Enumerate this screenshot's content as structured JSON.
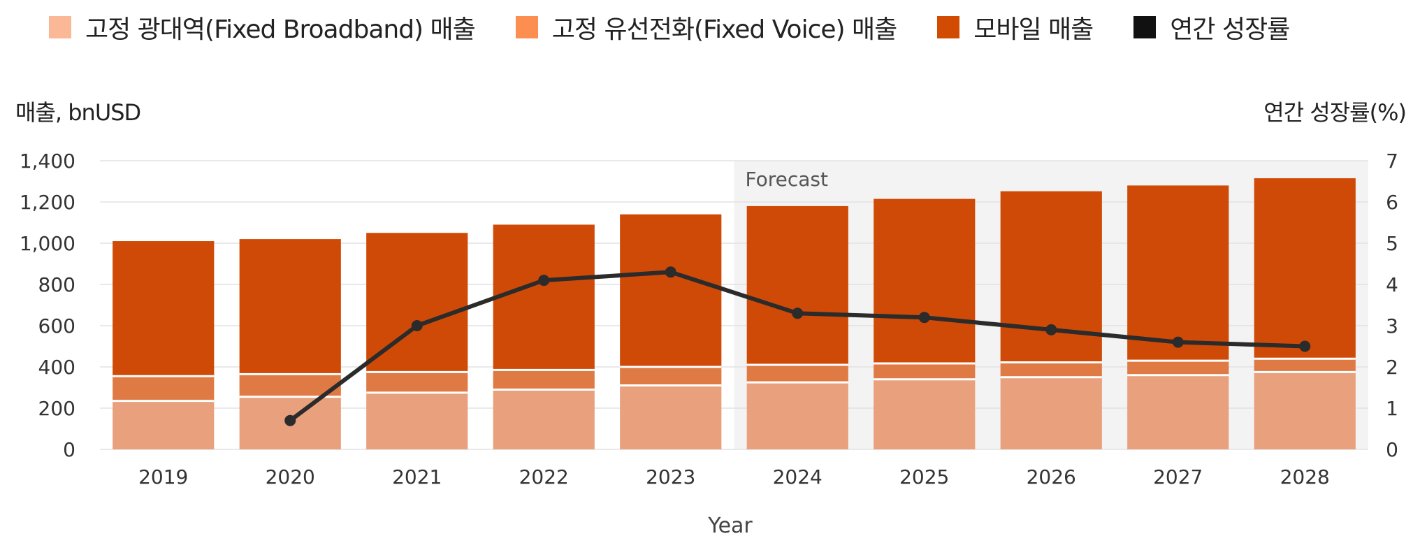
{
  "legend": {
    "items": [
      {
        "label": "고정 광대역(Fixed Broadband) 매출",
        "color": "#FBB896"
      },
      {
        "label": "고정 유선전화(Fixed Voice) 매출",
        "color": "#FC8E52"
      },
      {
        "label": "모바일 매출",
        "color": "#D24B02"
      },
      {
        "label": "연간 성장률",
        "color": "#111111"
      }
    ]
  },
  "axes": {
    "left_title": "매출, bnUSD",
    "right_title": "연간 성장률(%)",
    "x_title": "Year"
  },
  "forecast_label": "Forecast",
  "colors": {
    "broadband": "#E8A07D",
    "voice": "#E07A45",
    "mobile": "#CF4A06",
    "growth": "#2B2B2B",
    "forecast_bg": "#F3F3F3",
    "grid": "#E2E2E2"
  },
  "chart_data": {
    "type": "bar",
    "stacked": true,
    "categories": [
      "2019",
      "2020",
      "2021",
      "2022",
      "2023",
      "2024",
      "2025",
      "2026",
      "2027",
      "2028"
    ],
    "series": [
      {
        "name": "고정 광대역(Fixed Broadband) 매출",
        "values": [
          235,
          255,
          275,
          290,
          310,
          325,
          340,
          350,
          360,
          375
        ]
      },
      {
        "name": "고정 유선전화(Fixed Voice) 매출",
        "values": [
          120,
          110,
          100,
          95,
          90,
          85,
          77,
          72,
          70,
          65
        ]
      },
      {
        "name": "모바일 매출",
        "values": [
          655,
          655,
          675,
          705,
          740,
          770,
          798,
          830,
          850,
          875
        ]
      }
    ],
    "line_series": {
      "name": "연간 성장률",
      "axis": "right",
      "values": [
        null,
        0.7,
        3.0,
        4.1,
        4.3,
        3.3,
        3.2,
        2.9,
        2.6,
        2.5
      ]
    },
    "forecast_from": "2024",
    "ylim": [
      0,
      1400
    ],
    "yticks": [
      "0",
      "200",
      "400",
      "600",
      "800",
      "1,000",
      "1,200",
      "1,400"
    ],
    "y2lim": [
      0,
      7
    ],
    "y2ticks": [
      "0",
      "1",
      "2",
      "3",
      "4",
      "5",
      "6",
      "7"
    ],
    "grid": true,
    "legend_position": "top-left",
    "title": "",
    "xlabel": "Year",
    "ylabel": "매출, bnUSD",
    "y2label": "연간 성장률(%)"
  }
}
